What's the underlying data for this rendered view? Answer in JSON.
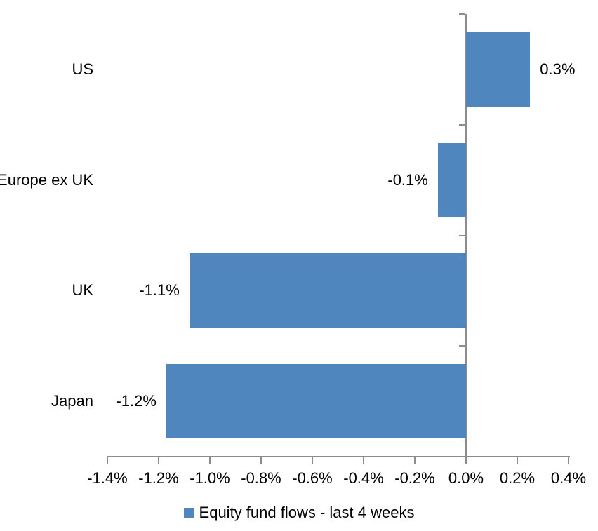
{
  "chart_data": {
    "type": "bar",
    "orientation": "horizontal",
    "title": "",
    "categories": [
      "US",
      "Europe ex UK",
      "UK",
      "Japan"
    ],
    "values": [
      0.3,
      -0.1,
      -1.1,
      -1.2
    ],
    "value_unit": "%",
    "data_labels": [
      "0.3%",
      "-0.1%",
      "-1.1%",
      "-1.2%"
    ],
    "bar_values_render": [
      0.25,
      -0.11,
      -1.08,
      -1.17
    ],
    "xlabel": "",
    "ylabel": "",
    "xlim": [
      -1.4,
      0.4
    ],
    "x_tick_step": 0.2,
    "x_ticks": [
      -1.4,
      -1.2,
      -1.0,
      -0.8,
      -0.6,
      -0.4,
      -0.2,
      0.0,
      0.2,
      0.4
    ],
    "x_tick_labels": [
      "-1.4%",
      "-1.2%",
      "-1.0%",
      "-0.8%",
      "-0.6%",
      "-0.4%",
      "-0.2%",
      "0.0%",
      "0.2%",
      "0.4%"
    ],
    "grid": "off",
    "legend": {
      "position": "bottom",
      "entries": [
        {
          "label": "Equity fund flows - last 4 weeks",
          "color": "#4F86BD"
        }
      ]
    },
    "colors": {
      "bar": "#4F86BD",
      "axis": "#8C8C8C",
      "text": "#000000",
      "background": "#FFFFFF"
    }
  }
}
